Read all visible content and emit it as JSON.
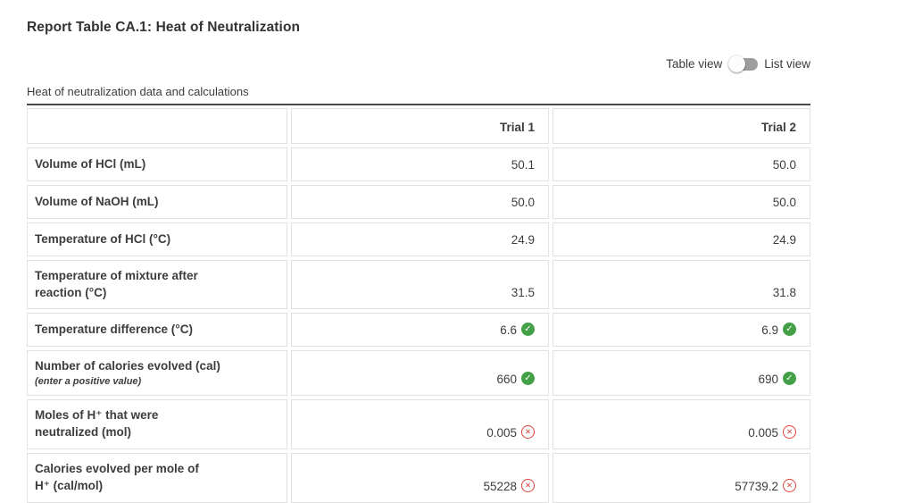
{
  "page": {
    "title": "Report Table CA.1: Heat of Neutralization"
  },
  "view_toggle": {
    "table_label": "Table view",
    "list_label": "List view",
    "selected": "Table view"
  },
  "table": {
    "caption": "Heat of neutralization data and calculations",
    "columns": [
      "Trial 1",
      "Trial 2"
    ],
    "rows": [
      {
        "label": "Volume of HCl (mL)",
        "note": "",
        "values": [
          {
            "text": "50.1",
            "status": "none"
          },
          {
            "text": "50.0",
            "status": "none"
          }
        ]
      },
      {
        "label": "Volume of NaOH (mL)",
        "note": "",
        "values": [
          {
            "text": "50.0",
            "status": "none"
          },
          {
            "text": "50.0",
            "status": "none"
          }
        ]
      },
      {
        "label": "Temperature of HCl (°C)",
        "note": "",
        "values": [
          {
            "text": "24.9",
            "status": "none"
          },
          {
            "text": "24.9",
            "status": "none"
          }
        ]
      },
      {
        "label": "Temperature of mixture after\nreaction (°C)",
        "note": "",
        "values": [
          {
            "text": "31.5",
            "status": "none"
          },
          {
            "text": "31.8",
            "status": "none"
          }
        ]
      },
      {
        "label": "Temperature difference (°C)",
        "note": "",
        "values": [
          {
            "text": "6.6",
            "status": "correct"
          },
          {
            "text": "6.9",
            "status": "correct"
          }
        ]
      },
      {
        "label": "Number of calories evolved (cal)",
        "note": "(enter a positive value)",
        "values": [
          {
            "text": "660",
            "status": "correct"
          },
          {
            "text": "690",
            "status": "correct"
          }
        ]
      },
      {
        "label": "Moles of H⁺ that were\nneutralized (mol)",
        "note": "",
        "values": [
          {
            "text": "0.005",
            "status": "incorrect"
          },
          {
            "text": "0.005",
            "status": "incorrect"
          }
        ]
      },
      {
        "label": "Calories evolved per mole of\nH⁺ (cal/mol)",
        "note": "",
        "values": [
          {
            "text": "55228",
            "status": "incorrect"
          },
          {
            "text": "57739.2",
            "status": "incorrect"
          }
        ]
      }
    ]
  },
  "icons": {
    "correct": {
      "name": "check-circle-icon",
      "glyph": "✓",
      "color": "#43a047"
    },
    "incorrect": {
      "name": "x-circle-icon",
      "glyph": "✕",
      "color": "#d9443b"
    }
  },
  "colors": {
    "correct": "#43a047",
    "incorrect": "#d9443b",
    "rule": "#4a4a4a",
    "cell_border": "#e3e0e0",
    "text": "#3d3d3d",
    "toggle_track": "#9e9e9e"
  }
}
